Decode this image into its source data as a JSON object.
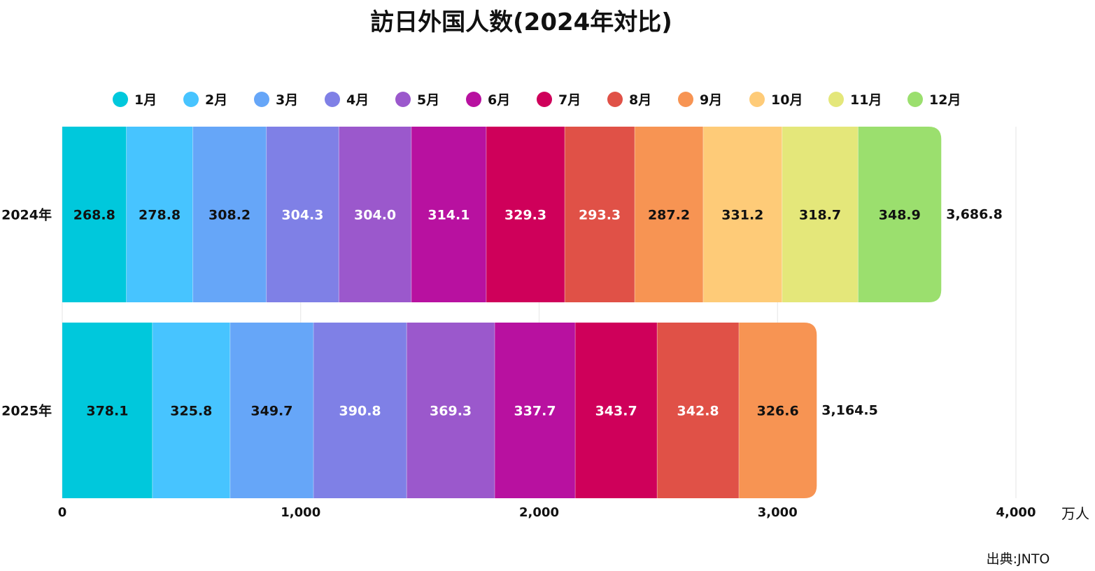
{
  "chart_data": {
    "type": "bar",
    "orientation": "horizontal",
    "stacked": true,
    "title": "訪日外国人数(2024年対比)",
    "categories": [
      "2024年",
      "2025年"
    ],
    "series": [
      {
        "name": "1月",
        "color": "#00C8DC",
        "label_color": "#111111",
        "values": [
          268.8,
          378.1
        ]
      },
      {
        "name": "2月",
        "color": "#47C4FF",
        "label_color": "#111111",
        "values": [
          278.8,
          325.8
        ]
      },
      {
        "name": "3月",
        "color": "#66A6F8",
        "label_color": "#111111",
        "values": [
          308.2,
          349.7
        ]
      },
      {
        "name": "4月",
        "color": "#7F80E6",
        "label_color": "#ffffff",
        "values": [
          304.3,
          390.8
        ]
      },
      {
        "name": "5月",
        "color": "#9B58CC",
        "label_color": "#ffffff",
        "values": [
          304.0,
          369.3
        ]
      },
      {
        "name": "6月",
        "color": "#B811A0",
        "label_color": "#ffffff",
        "values": [
          314.1,
          337.7
        ]
      },
      {
        "name": "7月",
        "color": "#CF005A",
        "label_color": "#ffffff",
        "values": [
          329.3,
          343.7
        ]
      },
      {
        "name": "8月",
        "color": "#E05147",
        "label_color": "#ffffff",
        "values": [
          293.3,
          342.8
        ]
      },
      {
        "name": "9月",
        "color": "#F79453",
        "label_color": "#111111",
        "values": [
          287.2,
          326.6
        ]
      },
      {
        "name": "10月",
        "color": "#FECB78",
        "label_color": "#111111",
        "values": [
          331.2,
          null
        ]
      },
      {
        "name": "11月",
        "color": "#E4E77A",
        "label_color": "#111111",
        "values": [
          318.7,
          null
        ]
      },
      {
        "name": "12月",
        "color": "#9BDF6E",
        "label_color": "#111111",
        "values": [
          348.9,
          null
        ]
      }
    ],
    "totals": [
      "3,686.8",
      "3,164.5"
    ],
    "xlim": [
      0,
      4000
    ],
    "xticks": [
      0,
      1000,
      2000,
      3000,
      4000
    ],
    "xtick_labels": [
      "0",
      "1,000",
      "2,000",
      "3,000",
      "4,000"
    ],
    "unit": "万人",
    "grid": true,
    "legend": "top"
  },
  "source": "出典:JNTO"
}
